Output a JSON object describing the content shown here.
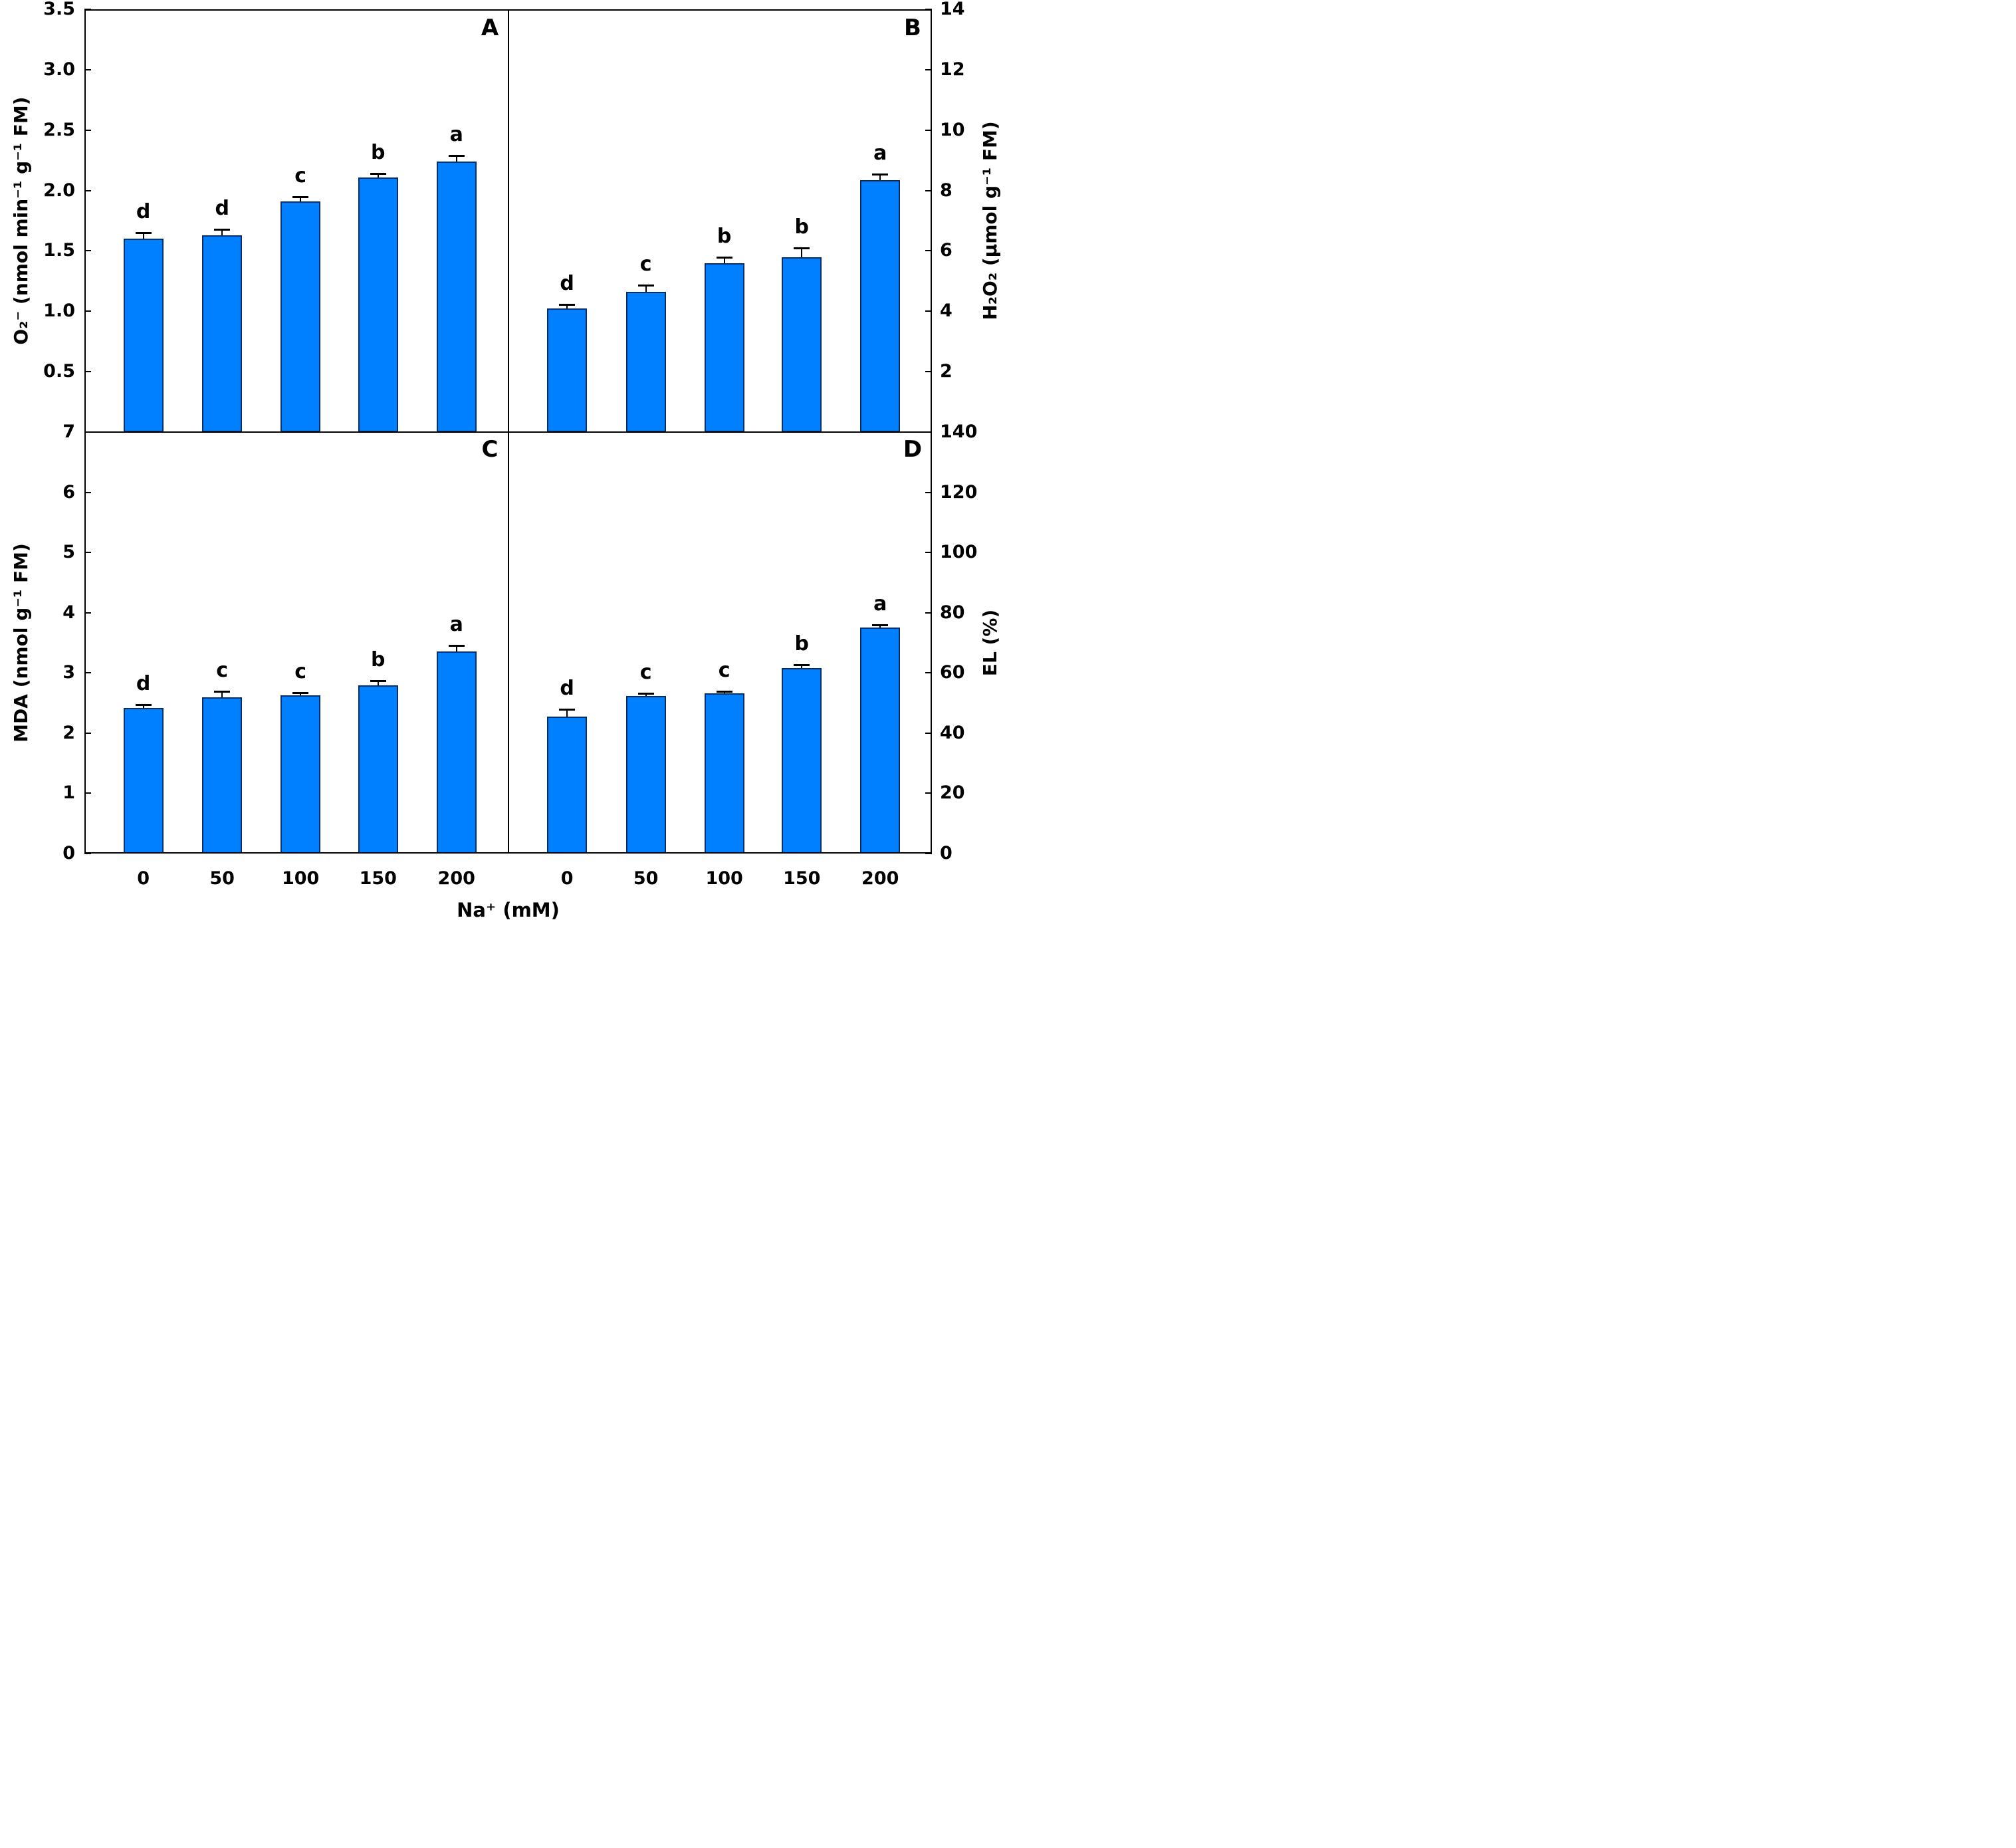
{
  "figure": {
    "xlabel": "Na⁺ (mM)"
  },
  "colors": {
    "bar_fill": "#0080ff",
    "bar_border": "#002d6b",
    "axis": "#000000",
    "error_bar": "#000000",
    "text": "#000000",
    "background": "#ffffff"
  },
  "chart_data": [
    {
      "type": "bar",
      "panel": "A",
      "corner_label": "A",
      "axis_side": "left",
      "ylabel": "O₂⁻ (nmol min⁻¹ g⁻¹ FM)",
      "ylim": [
        0,
        3.5
      ],
      "yticks": [
        0.5,
        1.0,
        1.5,
        2.0,
        2.5,
        3.0,
        3.5
      ],
      "ytick_labels": [
        "0.5",
        "1.0",
        "1.5",
        "2.0",
        "2.5",
        "3.0",
        "3.5"
      ],
      "categories": [
        "0",
        "50",
        "100",
        "150",
        "200"
      ],
      "values": [
        1.6,
        1.63,
        1.91,
        2.11,
        2.24
      ],
      "errors": [
        0.05,
        0.05,
        0.04,
        0.03,
        0.05
      ],
      "sig_letters": [
        "d",
        "d",
        "c",
        "b",
        "a"
      ],
      "grid": false,
      "legend": null
    },
    {
      "type": "bar",
      "panel": "B",
      "corner_label": "B",
      "axis_side": "right",
      "ylabel": "H₂O₂ (µmol g⁻¹ FM)",
      "ylim": [
        0,
        14
      ],
      "yticks": [
        2,
        4,
        6,
        8,
        10,
        12,
        14
      ],
      "ytick_labels": [
        "2",
        "4",
        "6",
        "8",
        "10",
        "12",
        "14"
      ],
      "categories": [
        "0",
        "50",
        "100",
        "150",
        "200"
      ],
      "values": [
        4.1,
        4.65,
        5.6,
        5.8,
        8.35
      ],
      "errors": [
        0.12,
        0.22,
        0.2,
        0.3,
        0.2
      ],
      "sig_letters": [
        "d",
        "c",
        "b",
        "b",
        "a"
      ],
      "grid": false,
      "legend": null
    },
    {
      "type": "bar",
      "panel": "C",
      "corner_label": "C",
      "axis_side": "left",
      "ylabel": "MDA (nmol g⁻¹ FM)",
      "ylim": [
        0,
        7
      ],
      "yticks": [
        0,
        1,
        2,
        3,
        4,
        5,
        6,
        7
      ],
      "ytick_labels": [
        "0",
        "1",
        "2",
        "3",
        "4",
        "5",
        "6",
        "7"
      ],
      "categories": [
        "0",
        "50",
        "100",
        "150",
        "200"
      ],
      "values": [
        2.42,
        2.6,
        2.63,
        2.79,
        3.36
      ],
      "errors": [
        0.05,
        0.09,
        0.04,
        0.08,
        0.1
      ],
      "sig_letters": [
        "d",
        "c",
        "c",
        "b",
        "a"
      ],
      "grid": false,
      "legend": null
    },
    {
      "type": "bar",
      "panel": "D",
      "corner_label": "D",
      "axis_side": "right",
      "ylabel": "EL (%)",
      "ylim": [
        0,
        140
      ],
      "yticks": [
        0,
        20,
        40,
        60,
        80,
        100,
        120,
        140
      ],
      "ytick_labels": [
        "0",
        "20",
        "40",
        "60",
        "80",
        "100",
        "120",
        "140"
      ],
      "categories": [
        "0",
        "50",
        "100",
        "150",
        "200"
      ],
      "values": [
        45.5,
        52.3,
        53.2,
        61.5,
        75.0
      ],
      "errors": [
        2.5,
        0.9,
        0.6,
        1.3,
        1.0
      ],
      "sig_letters": [
        "d",
        "c",
        "c",
        "b",
        "a"
      ],
      "grid": false,
      "legend": null
    }
  ]
}
